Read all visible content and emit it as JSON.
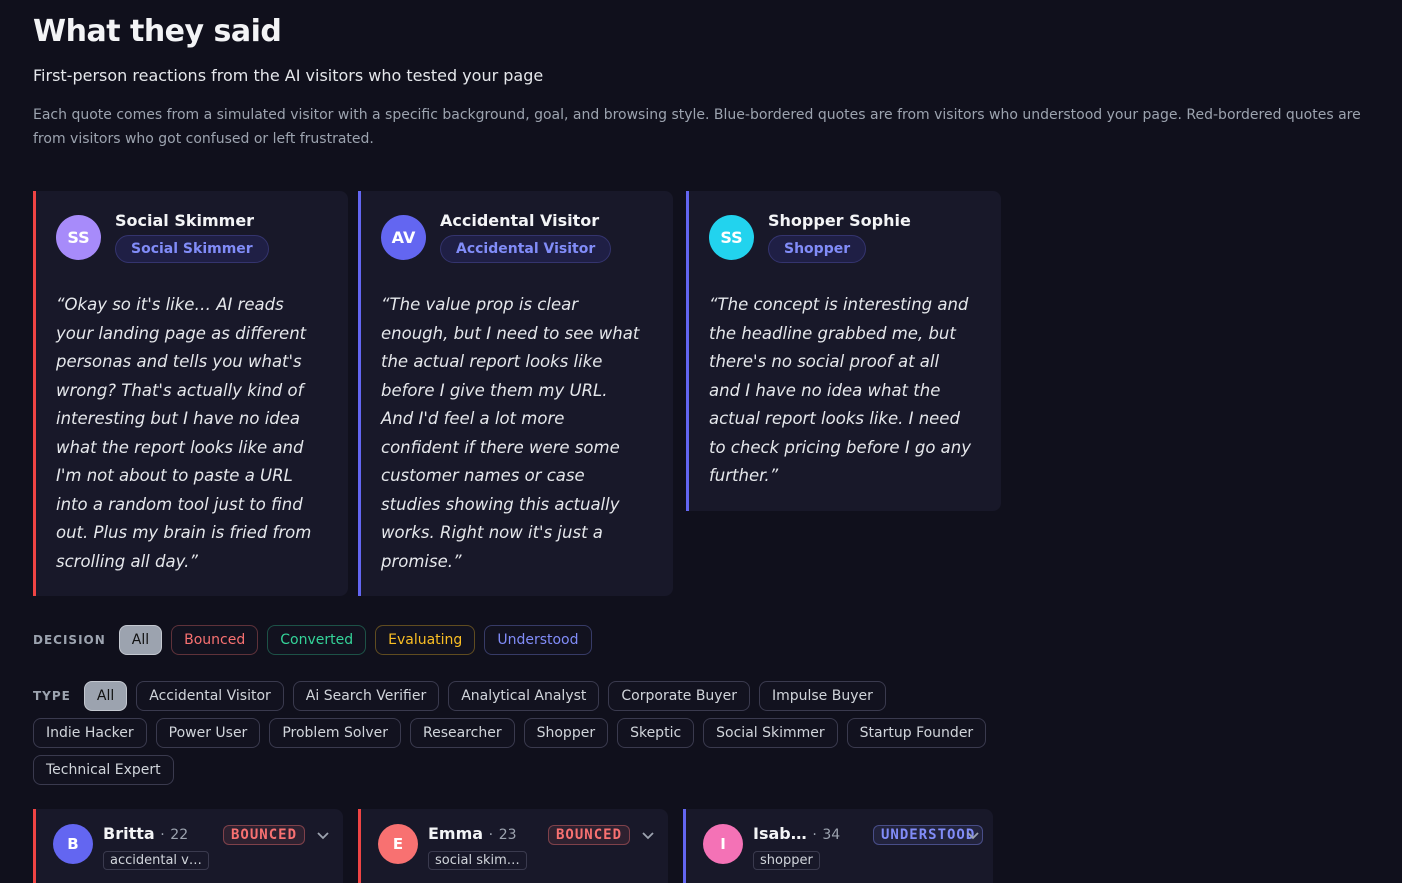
{
  "header": {
    "title": "What they said",
    "subtitle": "First-person reactions from the AI visitors who tested your page",
    "description": "Each quote comes from a simulated visitor with a specific background, goal, and browsing style. Blue-bordered quotes are from visitors who understood your page. Red-bordered quotes are from visitors who got confused or left frustrated."
  },
  "quotes": [
    {
      "initials": "SS",
      "name": "Social Skimmer",
      "tag": "Social Skimmer",
      "quote": "“Okay so it's like… AI reads your landing page as different personas and tells you what's wrong? That's actually kind of interesting but I have no idea what the report looks like and I'm not about to paste a URL into a random tool just to find out. Plus my brain is fried from scrolling all day.”",
      "border_color": "#ef4444",
      "avatar_color": "#a78bfa"
    },
    {
      "initials": "AV",
      "name": "Accidental Visitor",
      "tag": "Accidental Visitor",
      "quote": "“The value prop is clear enough, but I need to see what the actual report looks like before I give them my URL. And I'd feel a lot more confident if there were some customer names or case studies showing this actually works. Right now it's just a promise.”",
      "border_color": "#6366f1",
      "avatar_color": "#6366f1"
    },
    {
      "initials": "SS",
      "name": "Shopper Sophie",
      "tag": "Shopper",
      "quote": "“The concept is interesting and the headline grabbed me, but there's no social proof at all and I have no idea what the actual report looks like. I need to check pricing before I go any further.”",
      "border_color": "#6366f1",
      "avatar_color": "#22d3ee"
    }
  ],
  "filters": {
    "decision": {
      "label": "DECISION",
      "options": [
        {
          "text": "All",
          "color": "#e5e7eb"
        },
        {
          "text": "Bounced",
          "color": "#f87171"
        },
        {
          "text": "Converted",
          "color": "#34d399"
        },
        {
          "text": "Evaluating",
          "color": "#fbbf24"
        },
        {
          "text": "Understood",
          "color": "#818cf8"
        }
      ]
    },
    "type": {
      "label": "TYPE",
      "options": [
        "All",
        "Accidental Visitor",
        "Ai Search Verifier",
        "Analytical Analyst",
        "Corporate Buyer",
        "Impulse Buyer",
        "Indie Hacker",
        "Power User",
        "Problem Solver",
        "Researcher",
        "Shopper",
        "Skeptic",
        "Social Skimmer",
        "Startup Founder",
        "Technical Expert"
      ]
    }
  },
  "visitors": [
    {
      "initial": "B",
      "name": "Britta",
      "separator": "·",
      "age": 22,
      "status": "BOUNCED",
      "tag": "accidental v…",
      "border_color": "#ef4444",
      "avatar_color": "#6366f1",
      "status_color": "#f87171"
    },
    {
      "initial": "E",
      "name": "Emma",
      "separator": "·",
      "age": 23,
      "status": "BOUNCED",
      "tag": "social skim…",
      "border_color": "#ef4444",
      "avatar_color": "#f87171",
      "status_color": "#f87171"
    },
    {
      "initial": "I",
      "name": "Isab…",
      "separator": "·",
      "age": 34,
      "status": "UNDERSTOOD",
      "tag": "shopper",
      "border_color": "#6366f1",
      "avatar_color": "#f472b6",
      "status_color": "#818cf8"
    }
  ]
}
